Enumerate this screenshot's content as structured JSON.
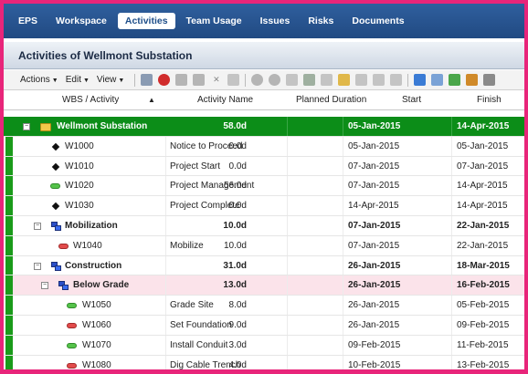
{
  "nav": {
    "tabs": [
      "EPS",
      "Workspace",
      "Activities",
      "Team Usage",
      "Issues",
      "Risks",
      "Documents"
    ],
    "active_index": 2
  },
  "page_title": "Activities of Wellmont Substation",
  "toolbar": {
    "menus": [
      "Actions",
      "Edit",
      "View"
    ]
  },
  "columns": {
    "wbs": "WBS / Activity",
    "name": "Activity Name",
    "planned": "Planned Duration",
    "start": "Start",
    "finish": "Finish"
  },
  "rows": [
    {
      "id": "Wellmont Substation",
      "name": "",
      "planned": "58.0d",
      "start": "05-Jan-2015",
      "finish": "14-Apr-2015"
    },
    {
      "id": "W1000",
      "name": "Notice to Proceed",
      "planned": "0.0d",
      "start": "05-Jan-2015",
      "finish": "05-Jan-2015"
    },
    {
      "id": "W1010",
      "name": "Project Start",
      "planned": "0.0d",
      "start": "07-Jan-2015",
      "finish": "07-Jan-2015"
    },
    {
      "id": "W1020",
      "name": "Project Management",
      "planned": "56.0d",
      "start": "07-Jan-2015",
      "finish": "14-Apr-2015"
    },
    {
      "id": "W1030",
      "name": "Project Complete",
      "planned": "0.0d",
      "start": "14-Apr-2015",
      "finish": "14-Apr-2015"
    },
    {
      "id": "Mobilization",
      "name": "",
      "planned": "10.0d",
      "start": "07-Jan-2015",
      "finish": "22-Jan-2015"
    },
    {
      "id": "W1040",
      "name": "Mobilize",
      "planned": "10.0d",
      "start": "07-Jan-2015",
      "finish": "22-Jan-2015"
    },
    {
      "id": "Construction",
      "name": "",
      "planned": "31.0d",
      "start": "26-Jan-2015",
      "finish": "18-Mar-2015"
    },
    {
      "id": "Below Grade",
      "name": "",
      "planned": "13.0d",
      "start": "26-Jan-2015",
      "finish": "16-Feb-2015"
    },
    {
      "id": "W1050",
      "name": "Grade Site",
      "planned": "8.0d",
      "start": "26-Jan-2015",
      "finish": "05-Feb-2015"
    },
    {
      "id": "W1060",
      "name": "Set Foundation",
      "planned": "9.0d",
      "start": "26-Jan-2015",
      "finish": "09-Feb-2015"
    },
    {
      "id": "W1070",
      "name": "Install Conduit",
      "planned": "3.0d",
      "start": "09-Feb-2015",
      "finish": "11-Feb-2015"
    },
    {
      "id": "W1080",
      "name": "Dig Cable Trench",
      "planned": "4.0d",
      "start": "10-Feb-2015",
      "finish": "13-Feb-2015"
    }
  ]
}
